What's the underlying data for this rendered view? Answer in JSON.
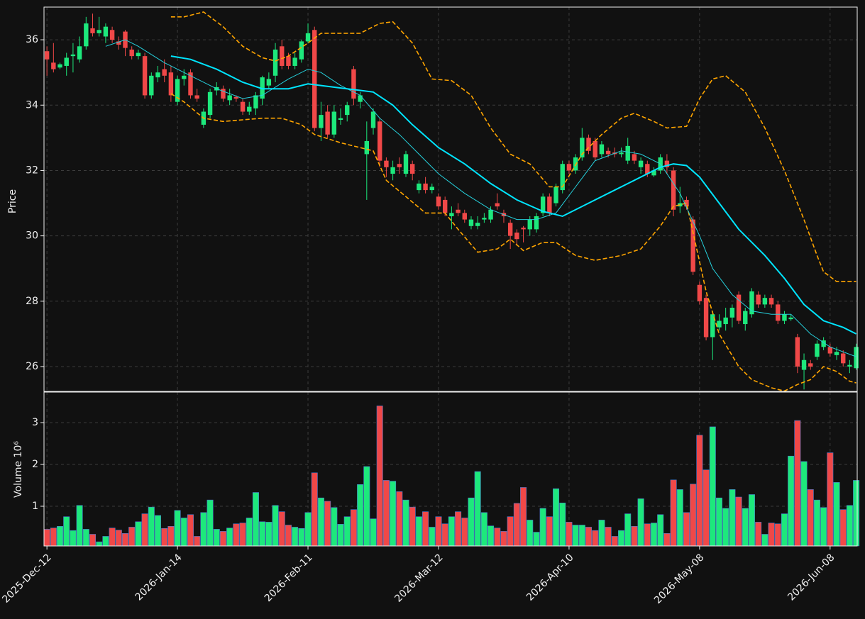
{
  "chart_data": [
    {
      "type": "candlestick",
      "ylabel": "Price",
      "up_color": "#1de87c",
      "down_color": "#f04848",
      "grid": true,
      "xlim": [
        -0.45,
        124.15
      ],
      "ylim": [
        25.24,
        37.0
      ],
      "yticks": [
        26,
        28,
        30,
        32,
        34,
        36
      ],
      "open": [
        35.65,
        35.3,
        35.15,
        35.2,
        35.5,
        35.4,
        35.8,
        36.35,
        36.2,
        36.1,
        36.3,
        35.95,
        36.25,
        35.7,
        35.5,
        35.5,
        34.3,
        34.85,
        35.1,
        35.0,
        34.1,
        34.8,
        35.0,
        34.3,
        33.4,
        33.7,
        34.45,
        34.5,
        34.15,
        34.25,
        34.1,
        33.8,
        33.9,
        34.2,
        34.6,
        34.9,
        35.8,
        35.5,
        35.2,
        35.4,
        35.95,
        36.3,
        33.3,
        33.8,
        33.1,
        33.55,
        33.7,
        35.1,
        34.1,
        32.5,
        33.3,
        33.5,
        32.3,
        31.9,
        32.2,
        31.9,
        32.2,
        31.4,
        31.6,
        31.4,
        31.2,
        31.1,
        30.6,
        30.8,
        30.7,
        30.3,
        30.3,
        30.5,
        30.5,
        31.0,
        30.7,
        30.4,
        30.1,
        30.25,
        30.2,
        30.2,
        30.7,
        31.2,
        31.0,
        31.4,
        32.2,
        32.0,
        32.4,
        33.0,
        32.9,
        32.5,
        32.6,
        32.55,
        32.5,
        32.3,
        32.5,
        32.1,
        32.2,
        31.85,
        32.0,
        32.3,
        32.0,
        30.9,
        31.1,
        30.5,
        28.5,
        28.1,
        26.9,
        27.2,
        27.3,
        27.5,
        28.2,
        27.3,
        27.6,
        28.2,
        27.9,
        28.1,
        27.9,
        27.4,
        27.45,
        26.9,
        25.9,
        26.1,
        26.3,
        26.6,
        26.6,
        26.35,
        26.4,
        26.0,
        25.95
      ],
      "high": [
        35.8,
        35.9,
        35.3,
        35.6,
        35.9,
        36.1,
        36.7,
        36.8,
        36.7,
        36.5,
        36.4,
        36.1,
        36.3,
        35.8,
        35.7,
        35.6,
        35.0,
        35.2,
        35.4,
        35.2,
        34.9,
        35.1,
        35.1,
        34.5,
        33.9,
        34.5,
        34.7,
        34.6,
        34.5,
        34.3,
        34.2,
        34.1,
        34.4,
        34.9,
        35.0,
        35.9,
        36.0,
        35.6,
        35.6,
        36.0,
        36.5,
        36.4,
        34.1,
        34.0,
        34.0,
        33.9,
        34.1,
        35.2,
        34.4,
        33.5,
        33.9,
        33.6,
        32.4,
        32.3,
        32.4,
        32.6,
        32.3,
        31.7,
        31.8,
        31.6,
        31.3,
        31.2,
        30.9,
        31.0,
        30.8,
        30.6,
        30.6,
        30.7,
        30.9,
        31.3,
        30.8,
        30.5,
        30.2,
        30.3,
        30.6,
        30.7,
        31.3,
        31.3,
        31.6,
        32.3,
        32.3,
        32.5,
        33.3,
        33.1,
        33.0,
        32.9,
        32.7,
        32.7,
        32.7,
        33.0,
        32.6,
        32.4,
        32.3,
        32.1,
        32.5,
        32.5,
        32.1,
        31.5,
        31.2,
        30.6,
        28.6,
        28.2,
        27.7,
        27.6,
        27.8,
        27.9,
        28.3,
        27.8,
        28.4,
        28.3,
        28.2,
        28.2,
        28.0,
        27.7,
        27.6,
        27.0,
        26.4,
        26.2,
        26.8,
        26.9,
        26.7,
        26.6,
        26.5,
        26.2,
        26.7
      ],
      "low": [
        34.9,
        35.0,
        35.1,
        34.9,
        35.0,
        35.3,
        35.7,
        36.1,
        36.1,
        35.9,
        35.9,
        35.7,
        35.5,
        35.4,
        35.4,
        34.2,
        34.2,
        34.7,
        34.7,
        34.1,
        34.0,
        34.6,
        34.2,
        34.1,
        33.3,
        33.6,
        34.3,
        34.1,
        34.0,
        34.1,
        33.7,
        33.7,
        33.7,
        34.0,
        34.5,
        34.7,
        35.1,
        35.1,
        35.1,
        35.3,
        35.9,
        33.2,
        32.9,
        33.0,
        33.0,
        33.4,
        33.5,
        34.0,
        33.9,
        31.1,
        33.1,
        32.1,
        31.8,
        31.7,
        31.9,
        31.8,
        31.7,
        31.3,
        31.3,
        31.3,
        30.8,
        30.6,
        30.2,
        30.6,
        30.4,
        30.2,
        30.2,
        30.4,
        30.4,
        30.8,
        30.4,
        29.6,
        29.7,
        29.8,
        30.0,
        30.1,
        30.6,
        30.6,
        30.9,
        31.3,
        31.9,
        31.9,
        32.3,
        32.5,
        32.3,
        32.4,
        32.4,
        32.4,
        32.4,
        32.2,
        32.2,
        31.9,
        31.8,
        31.8,
        31.9,
        31.9,
        30.6,
        30.7,
        30.8,
        28.8,
        27.9,
        26.8,
        26.2,
        27.1,
        27.1,
        27.2,
        27.3,
        27.1,
        27.5,
        27.8,
        27.8,
        27.8,
        27.3,
        27.3,
        27.4,
        25.8,
        25.3,
        25.9,
        26.2,
        26.5,
        26.3,
        26.2,
        26.0,
        25.8,
        25.9
      ],
      "close": [
        35.4,
        35.1,
        35.25,
        35.45,
        35.55,
        35.8,
        36.5,
        36.2,
        36.3,
        36.4,
        36.0,
        35.85,
        35.75,
        35.5,
        35.6,
        34.3,
        34.9,
        35.0,
        34.9,
        34.3,
        34.8,
        34.9,
        34.3,
        34.2,
        33.8,
        34.4,
        34.55,
        34.2,
        34.3,
        34.2,
        33.8,
        33.95,
        34.3,
        34.85,
        34.8,
        35.7,
        35.2,
        35.2,
        35.45,
        35.95,
        36.2,
        33.3,
        33.7,
        33.1,
        33.8,
        33.6,
        34.0,
        34.2,
        34.3,
        32.9,
        33.8,
        32.3,
        32.1,
        32.1,
        32.1,
        32.5,
        31.9,
        31.6,
        31.4,
        31.5,
        30.9,
        30.7,
        30.7,
        30.7,
        30.5,
        30.5,
        30.4,
        30.55,
        30.8,
        30.9,
        30.6,
        30.0,
        29.9,
        30.2,
        30.5,
        30.6,
        31.2,
        30.7,
        31.5,
        32.2,
        32.0,
        32.4,
        33.0,
        32.6,
        32.4,
        32.8,
        32.5,
        32.5,
        32.55,
        32.75,
        32.3,
        32.3,
        31.9,
        32.0,
        32.4,
        32.1,
        30.8,
        31.0,
        30.9,
        28.9,
        28.0,
        26.9,
        27.6,
        27.4,
        27.5,
        27.8,
        27.4,
        27.7,
        28.3,
        27.9,
        28.1,
        27.9,
        27.4,
        27.6,
        27.5,
        26.0,
        26.2,
        26.0,
        26.7,
        26.8,
        26.4,
        26.45,
        26.1,
        26.05,
        26.6
      ],
      "overlays": [
        {
          "color": "#ffa500",
          "width": 1.6,
          "style": "dashed",
          "x": [
            19,
            21,
            24,
            27,
            30,
            33,
            35,
            37,
            40,
            42,
            45,
            48,
            51,
            53,
            56,
            59,
            62,
            65,
            68,
            71,
            74,
            77,
            79,
            82,
            85,
            88,
            90,
            93,
            95,
            98,
            100,
            102,
            104,
            107,
            110,
            113,
            116,
            118,
            119,
            121,
            124
          ],
          "values": [
            36.7,
            36.7,
            36.85,
            36.4,
            35.8,
            35.45,
            35.35,
            35.5,
            35.9,
            36.2,
            36.2,
            36.2,
            36.5,
            36.55,
            35.9,
            34.8,
            34.75,
            34.3,
            33.3,
            32.5,
            32.2,
            31.5,
            31.5,
            32.5,
            33.1,
            33.6,
            33.75,
            33.5,
            33.3,
            33.35,
            34.2,
            34.8,
            34.9,
            34.4,
            33.3,
            32.0,
            30.5,
            29.4,
            28.9,
            28.6,
            28.6
          ]
        },
        {
          "color": "#ffa500",
          "width": 1.6,
          "style": "dashed",
          "x": [
            19,
            21,
            24,
            27,
            30,
            33,
            36,
            39,
            41,
            45,
            48,
            50,
            52,
            55,
            58,
            61,
            63,
            66,
            69,
            71,
            73,
            76,
            78,
            81,
            84,
            88,
            91,
            94,
            96,
            98,
            99,
            101,
            103,
            106,
            108,
            111,
            113,
            115,
            117,
            119,
            121,
            123,
            124
          ],
          "values": [
            34.35,
            34.1,
            33.6,
            33.5,
            33.55,
            33.6,
            33.6,
            33.4,
            33.1,
            32.85,
            32.7,
            32.6,
            31.7,
            31.2,
            30.7,
            30.7,
            30.2,
            29.5,
            29.6,
            29.9,
            29.55,
            29.8,
            29.8,
            29.4,
            29.25,
            29.4,
            29.6,
            30.3,
            30.9,
            31.0,
            30.1,
            28.3,
            27.0,
            26.0,
            25.6,
            25.35,
            25.25,
            25.45,
            25.6,
            26.0,
            25.85,
            25.55,
            25.5
          ]
        },
        {
          "color": "#26d0dc",
          "width": 1,
          "style": "solid",
          "x": [
            9,
            12,
            14,
            18,
            22,
            26,
            30,
            33,
            37,
            40,
            42,
            45,
            48,
            51,
            54,
            57,
            60,
            64,
            68,
            72,
            75,
            78,
            81,
            84,
            88,
            91,
            94,
            97,
            100,
            102,
            105,
            108,
            111,
            114,
            117,
            120,
            124
          ],
          "values": [
            35.8,
            36.0,
            35.8,
            35.3,
            34.9,
            34.5,
            34.2,
            34.3,
            34.8,
            35.1,
            35.0,
            34.6,
            34.3,
            33.6,
            33.1,
            32.5,
            31.9,
            31.3,
            30.8,
            30.5,
            30.5,
            30.7,
            31.5,
            32.3,
            32.6,
            32.5,
            32.2,
            31.3,
            30.0,
            29.0,
            28.2,
            27.7,
            27.6,
            27.6,
            27.0,
            26.6,
            26.3
          ]
        },
        {
          "color": "#00e5ff",
          "width": 2,
          "style": "solid",
          "x": [
            19,
            22,
            26,
            30,
            33,
            37,
            40,
            42,
            46,
            50,
            53,
            56,
            60,
            64,
            68,
            72,
            76,
            79,
            82,
            86,
            90,
            94,
            96,
            98,
            100,
            103,
            106,
            110,
            113,
            116,
            119,
            122,
            124
          ],
          "values": [
            35.5,
            35.4,
            35.1,
            34.7,
            34.5,
            34.5,
            34.65,
            34.6,
            34.5,
            34.4,
            34.0,
            33.4,
            32.7,
            32.2,
            31.6,
            31.1,
            30.75,
            30.6,
            30.9,
            31.3,
            31.7,
            32.1,
            32.2,
            32.15,
            31.8,
            31.0,
            30.2,
            29.4,
            28.7,
            27.9,
            27.4,
            27.2,
            27.0
          ]
        }
      ]
    },
    {
      "type": "bar",
      "ylabel": "Volume  10⁶",
      "grid": true,
      "xlim": [
        -0.45,
        124.15
      ],
      "ylim": [
        0.05,
        3.73
      ],
      "yticks": [
        1,
        2,
        3
      ],
      "xticks": [
        {
          "value": 0,
          "label": "2025-Dec-12"
        },
        {
          "value": 20,
          "label": "2026-Jan-14"
        },
        {
          "value": 40,
          "label": "2026-Feb-11"
        },
        {
          "value": 60,
          "label": "2026-Mar-12"
        },
        {
          "value": 80,
          "label": "2026-Apr-10"
        },
        {
          "value": 100,
          "label": "2026-May-08"
        },
        {
          "value": 120,
          "label": "2026-Jun-08"
        }
      ],
      "values": [
        0.45,
        0.48,
        0.52,
        0.75,
        0.42,
        1.02,
        0.45,
        0.33,
        0.15,
        0.28,
        0.48,
        0.43,
        0.35,
        0.5,
        0.63,
        0.82,
        0.98,
        0.78,
        0.47,
        0.52,
        0.9,
        0.72,
        0.8,
        0.28,
        0.85,
        1.15,
        0.45,
        0.4,
        0.48,
        0.58,
        0.6,
        0.72,
        1.33,
        0.63,
        0.62,
        1.02,
        0.87,
        0.55,
        0.5,
        0.47,
        0.85,
        1.8,
        1.2,
        1.12,
        0.97,
        0.57,
        0.75,
        0.92,
        1.52,
        1.95,
        0.7,
        3.4,
        1.62,
        1.6,
        1.35,
        1.15,
        0.98,
        0.75,
        0.87,
        0.5,
        0.75,
        0.58,
        0.75,
        0.87,
        0.72,
        1.2,
        1.83,
        0.85,
        0.53,
        0.48,
        0.4,
        0.75,
        1.07,
        1.45,
        0.67,
        0.38,
        0.95,
        0.75,
        1.42,
        1.08,
        0.62,
        0.55,
        0.55,
        0.5,
        0.42,
        0.67,
        0.5,
        0.28,
        0.42,
        0.82,
        0.52,
        1.18,
        0.58,
        0.6,
        0.8,
        0.35,
        1.63,
        1.4,
        0.85,
        1.53,
        2.7,
        1.87,
        2.9,
        1.2,
        0.95,
        1.4,
        1.22,
        0.95,
        1.28,
        0.62,
        0.33,
        0.6,
        0.58,
        0.82,
        2.2,
        3.05,
        2.07,
        1.4,
        1.15,
        0.97,
        2.28,
        1.57,
        0.92,
        1.02,
        1.62
      ]
    }
  ]
}
